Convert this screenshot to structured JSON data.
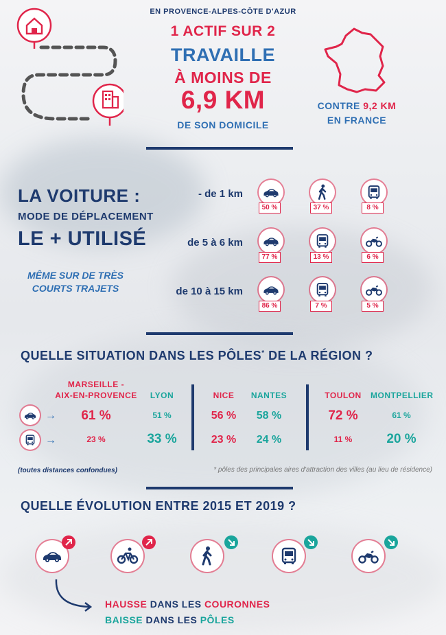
{
  "header": {
    "region": "EN PROVENCE-ALPES-CÔTE D'AZUR",
    "line1": "1 ACTIF SUR 2",
    "line2": "TRAVAILLE",
    "line3": "À MOINS DE",
    "line4": "6,9 KM",
    "line5": "DE SON DOMICILE",
    "contre_label": "CONTRE",
    "contre_value": "9,2 KM",
    "contre_place": "EN FRANCE"
  },
  "voiture": {
    "title1": "LA VOITURE :",
    "title2": "MODE DE DÉPLACEMENT",
    "title3": "LE + UTILISÉ",
    "subtitle1": "MÊME SUR DE TRÈS",
    "subtitle2": "COURTS TRAJETS"
  },
  "distances": [
    {
      "label": "- de 1 km",
      "modes": [
        {
          "icon": "car-icon",
          "value": "50 %"
        },
        {
          "icon": "walking-icon",
          "value": "37 %"
        },
        {
          "icon": "bus-icon",
          "value": "8 %"
        }
      ]
    },
    {
      "label": "de 5 à 6 km",
      "modes": [
        {
          "icon": "car-icon",
          "value": "77 %"
        },
        {
          "icon": "bus-icon",
          "value": "13 %"
        },
        {
          "icon": "motorcycle-icon",
          "value": "6 %"
        }
      ]
    },
    {
      "label": "de 10 à 15 km",
      "modes": [
        {
          "icon": "car-icon",
          "value": "86 %"
        },
        {
          "icon": "bus-icon",
          "value": "7 %"
        },
        {
          "icon": "motorcycle-icon",
          "value": "5 %"
        }
      ]
    }
  ],
  "poles": {
    "title_a": "QUELLE SITUATION DANS LES PÔLES",
    "title_star": "*",
    "title_b": " DE LA RÉGION ?",
    "cities": [
      {
        "name1": "MARSEILLE -",
        "name2": "AIX-EN-PROVENCE",
        "car": "61 %",
        "bus": "23 %"
      },
      {
        "name1": "LYON",
        "name2": "",
        "car": "51 %",
        "bus": "33 %"
      },
      {
        "name1": "NICE",
        "name2": "",
        "car": "56 %",
        "bus": "23 %"
      },
      {
        "name1": "NANTES",
        "name2": "",
        "car": "58 %",
        "bus": "24 %"
      },
      {
        "name1": "TOULON",
        "name2": "",
        "car": "72 %",
        "bus": "11 %"
      },
      {
        "name1": "MONTPELLIER",
        "name2": "",
        "car": "61 %",
        "bus": "20 %"
      }
    ],
    "note_left": "(toutes distances confondues)",
    "note_right": "* pôles des principales aires d'attraction des villes (au lieu de résidence)"
  },
  "evolution": {
    "title": "QUELLE ÉVOLUTION ENTRE 2015 ET 2019 ?",
    "items": [
      {
        "icon": "car-icon",
        "trend": "up"
      },
      {
        "icon": "bicycle-icon",
        "trend": "up"
      },
      {
        "icon": "walking-icon",
        "trend": "down"
      },
      {
        "icon": "bus-icon",
        "trend": "down"
      },
      {
        "icon": "motorcycle-icon",
        "trend": "down"
      }
    ],
    "hausse": "HAUSSE",
    "hausse_mid": " DANS LES ",
    "hausse_end": "COURONNES",
    "baisse": "BAISSE",
    "baisse_mid": " DANS LES ",
    "baisse_end": "PÔLES"
  },
  "colors": {
    "navy": "#1e3a6e",
    "red": "#e0254a",
    "teal": "#1aa59c",
    "blue": "#2f6fb3"
  }
}
